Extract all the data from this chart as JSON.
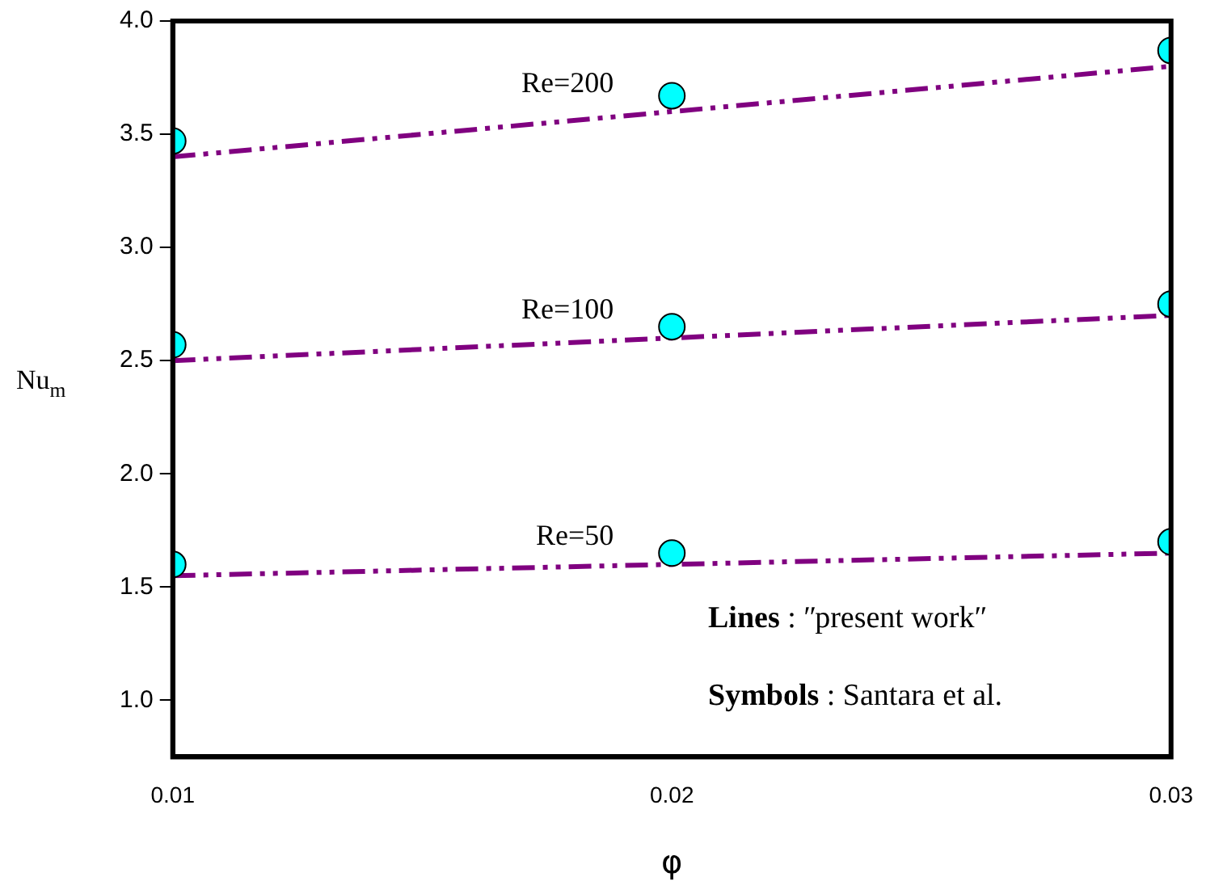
{
  "chart_data": {
    "type": "line",
    "xlabel": "φ",
    "ylabel": "Nu$_{m}$",
    "x": [
      0.01,
      0.02,
      0.03
    ],
    "series": [
      {
        "name": "Re=200",
        "color": "#800080",
        "marker": "none",
        "values": [
          3.4,
          3.6,
          3.8
        ]
      },
      {
        "name": "Re=100",
        "color": "#800080",
        "marker": "none",
        "values": [
          2.5,
          2.6,
          2.7
        ]
      },
      {
        "name": "Re=50",
        "color": "#800080",
        "marker": "none",
        "values": [
          1.55,
          1.6,
          1.65
        ]
      },
      {
        "type": "scatter",
        "color": "#00ffff",
        "marker": "circle",
        "values": [
          3.47,
          3.67,
          3.87
        ]
      },
      {
        "type": "scatter",
        "color": "#00ffff",
        "marker": "circle",
        "values": [
          2.57,
          2.65,
          2.75
        ]
      },
      {
        "type": "scatter",
        "color": "#00ffff",
        "marker": "circle",
        "values": [
          1.6,
          1.65,
          1.7
        ]
      }
    ],
    "xlim": [
      0.01,
      0.03
    ],
    "xticks": [
      0.01,
      0.02,
      0.03
    ],
    "ylim": [
      0.75,
      4.0
    ],
    "yticks": [
      {
        "value": 1,
        "label": "1.0"
      },
      {
        "value": 1.5,
        "label": "1.5"
      },
      {
        "value": 2,
        "label": "2.0"
      },
      {
        "value": 2.5,
        "label": "2.5"
      },
      {
        "value": 3,
        "label": "3.0"
      },
      {
        "value": 3.5,
        "label": "3.5"
      },
      {
        "value": 4,
        "label": "4.0"
      }
    ],
    "grid": false,
    "legend": false,
    "line_style": "dashed",
    "annotations": [
      "Lines : ʺpresent workʺ",
      "Symbols : Santara et al."
    ]
  }
}
